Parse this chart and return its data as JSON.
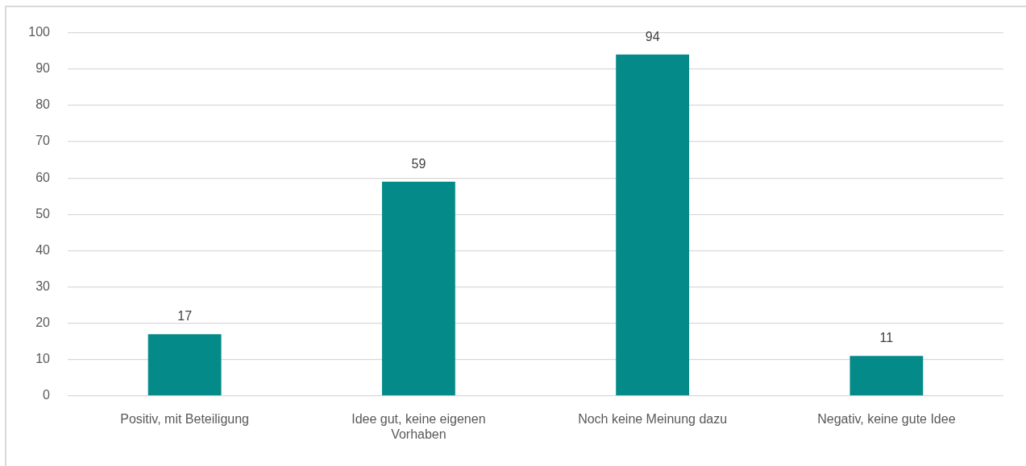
{
  "chart_data": {
    "type": "bar",
    "categories": [
      "Positiv, mit Beteiligung",
      "Idee gut, keine eigenen Vorhaben",
      "Noch keine Meinung dazu",
      "Negativ, keine gute Idee"
    ],
    "values": [
      17,
      59,
      94,
      11
    ],
    "color": "#058a8a",
    "ylim": [
      0,
      100
    ],
    "yticks": [
      0,
      10,
      20,
      30,
      40,
      50,
      60,
      70,
      80,
      90,
      100
    ],
    "grid": "y",
    "data_labels": true
  }
}
